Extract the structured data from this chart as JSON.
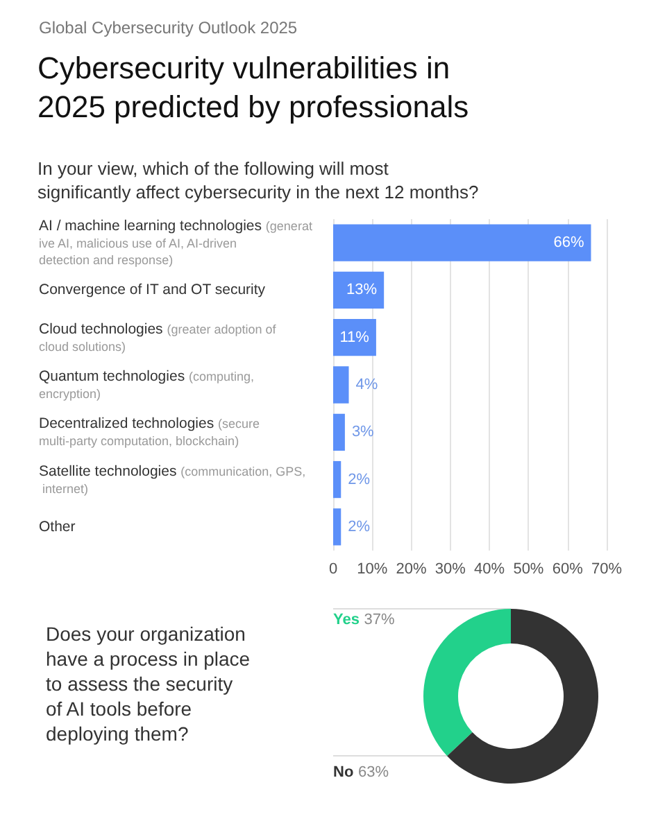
{
  "chart_data": [
    {
      "type": "bar",
      "orientation": "horizontal",
      "title": "Cybersecurity vulnerabilities in 2025 predicted by professionals",
      "subtitle": "In your view, which of the following will most significantly affect cybersecurity in the next 12 months?",
      "annotations": [
        "Global Cybersecurity Outlook 2025"
      ],
      "categories": [
        "AI / machine learning technologies (generative AI, malicious use of AI, AI-driven detection and response)",
        "Convergence of IT and OT security",
        "Cloud technologies (greater adoption of cloud solutions)",
        "Quantum technologies (computing, encryption)",
        "Decentralized technologies (secure multi-party computation, blockchain)",
        "Satellite technologies (communication, GPS, internet)",
        "Other"
      ],
      "values": [
        66,
        13,
        11,
        4,
        3,
        2,
        2
      ],
      "value_labels": [
        "66%",
        "13%",
        "11%",
        "4%",
        "3%",
        "2%",
        "2%"
      ],
      "color": "#5b8ff9",
      "xlim": [
        0,
        70
      ],
      "xticks": [
        0,
        {
          "value": 10,
          "label": "10%"
        },
        {
          "value": 20,
          "label": "20%"
        },
        {
          "value": 30,
          "label": "30%"
        },
        {
          "value": 40,
          "label": "40%"
        },
        {
          "value": 50,
          "label": "50%"
        },
        {
          "value": 60,
          "label": "60%"
        },
        {
          "value": 70,
          "label": "70%"
        }
      ],
      "grid": "x",
      "legend": false
    },
    {
      "type": "donut",
      "title": "Does your organization have a process in place to assess the security of AI tools before deploying them?",
      "categories": [
        "Yes",
        "No"
      ],
      "values": [
        37,
        63
      ],
      "value_labels": [
        "37%",
        "63%"
      ],
      "colors": [
        "#22d18b",
        "#333333"
      ],
      "legend": false
    }
  ]
}
